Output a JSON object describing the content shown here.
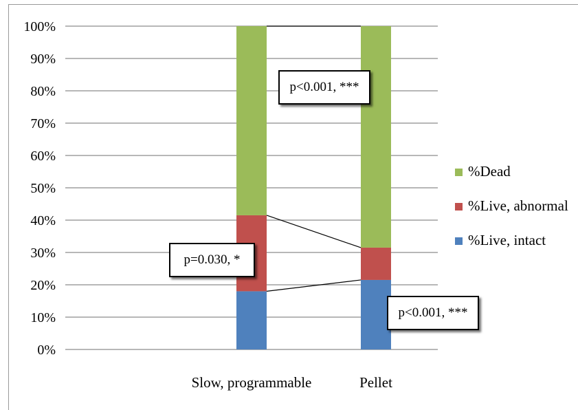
{
  "chart_data": {
    "type": "bar",
    "stacked": true,
    "categories": [
      "Slow, programmable",
      "Pellet"
    ],
    "series": [
      {
        "name": "%Live, intact",
        "color": "#4f81bd",
        "values": [
          18,
          21.5
        ]
      },
      {
        "name": "%Live, abnormal",
        "color": "#c0504d",
        "values": [
          23.5,
          10
        ]
      },
      {
        "name": "%Dead",
        "color": "#9bbb59",
        "values": [
          58.5,
          68.5
        ]
      }
    ],
    "yticks": [
      "0%",
      "10%",
      "20%",
      "30%",
      "40%",
      "50%",
      "60%",
      "70%",
      "80%",
      "90%",
      "100%"
    ],
    "ylim": [
      0,
      100
    ],
    "grid": true,
    "legend_position": "right",
    "title": "",
    "xlabel": "",
    "ylabel": "",
    "annotations": [
      {
        "text": "p<0.001, ***"
      },
      {
        "text": "p=0.030, *"
      },
      {
        "text": "p<0.001, ***"
      }
    ]
  }
}
